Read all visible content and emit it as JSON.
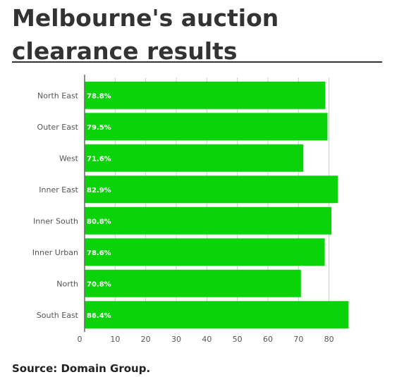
{
  "title": "Melbourne's auction clearance results",
  "source": "Source: Domain Group.",
  "chart_data": {
    "type": "bar",
    "orientation": "horizontal",
    "title": "Melbourne's auction clearance results",
    "categories": [
      "North East",
      "Outer East",
      "West",
      "Inner East",
      "Inner South",
      "Inner Urban",
      "North",
      "South East"
    ],
    "values": [
      78.8,
      79.5,
      71.6,
      82.9,
      80.8,
      78.6,
      70.8,
      86.4
    ],
    "data_labels": [
      "78.8%",
      "79.5%",
      "71.6%",
      "82.9%",
      "80.8%",
      "78.6%",
      "70.8%",
      "86.4%"
    ],
    "x_ticks": [
      0,
      10,
      20,
      30,
      40,
      50,
      60,
      70,
      80
    ],
    "xlim": [
      0,
      90
    ],
    "xlabel": "",
    "ylabel": "",
    "grid": "vertical",
    "bar_color": "#0ad30a",
    "grid_color": "#cccccc",
    "axis_color": "#666666"
  }
}
